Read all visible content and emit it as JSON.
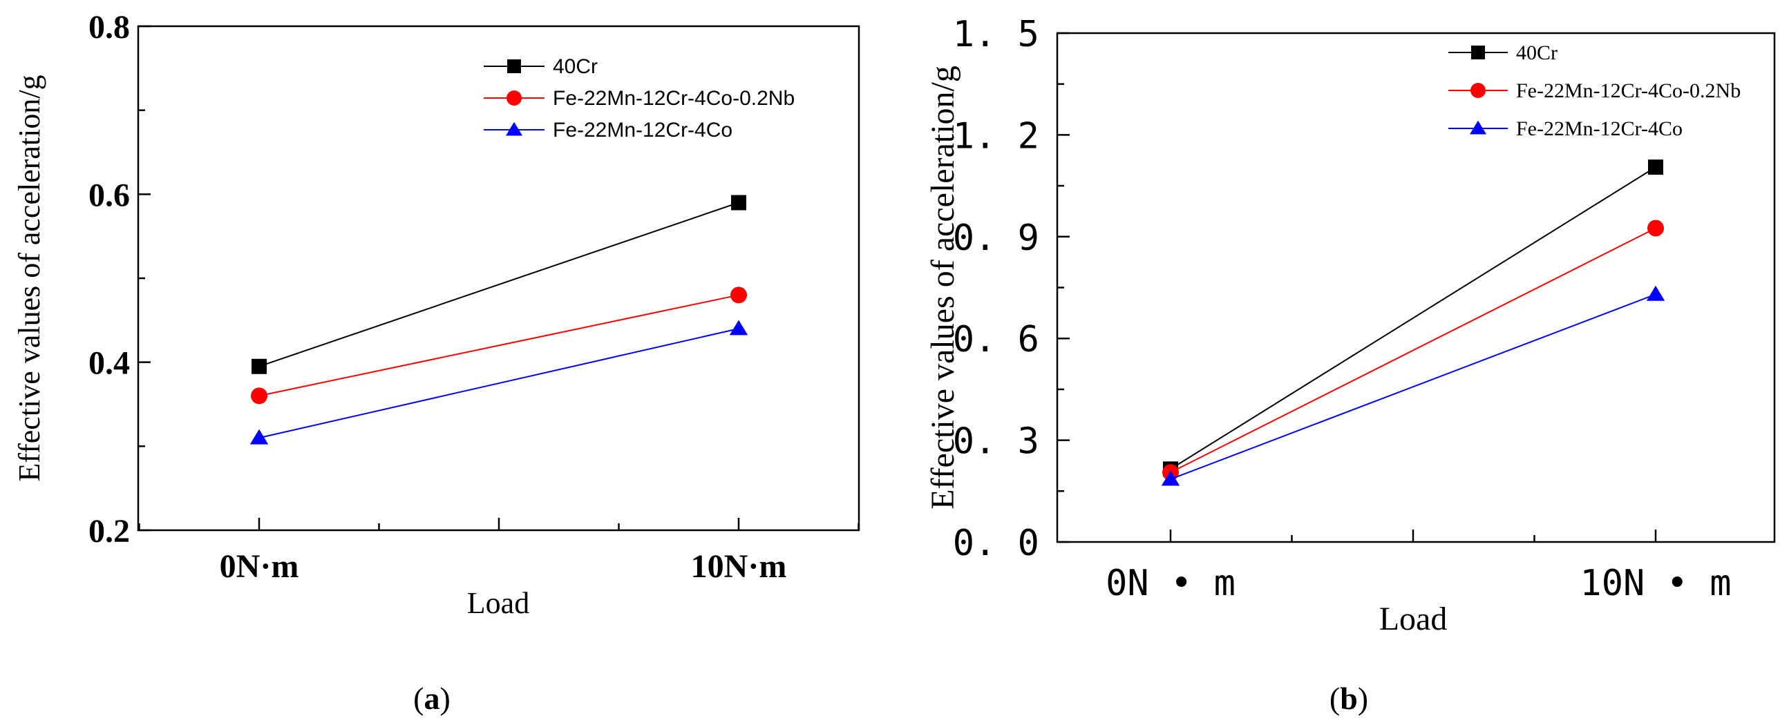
{
  "chart_data": [
    {
      "type": "line",
      "panel_label": "a",
      "categories": [
        "0N·m",
        "10N·m"
      ],
      "xlabel": "Load",
      "ylabel": "Effective values of acceleration/g",
      "ylim": [
        0.2,
        0.8
      ],
      "yticks": [
        0.2,
        0.4,
        0.6,
        0.8
      ],
      "ytick_labels": [
        "0.2",
        "0.4",
        "0.6",
        "0.8"
      ],
      "legend_position": "top-right",
      "series": [
        {
          "name": "40Cr",
          "color": "#000000",
          "marker": "square",
          "values": [
            0.395,
            0.59
          ]
        },
        {
          "name": "Fe-22Mn-12Cr-4Co-0.2Nb",
          "color": "#ff0000",
          "marker": "circle",
          "values": [
            0.36,
            0.48
          ]
        },
        {
          "name": "Fe-22Mn-12Cr-4Co",
          "color": "#0000ff",
          "marker": "triangle",
          "values": [
            0.31,
            0.44
          ]
        }
      ]
    },
    {
      "type": "line",
      "panel_label": "b",
      "categories": [
        "0N • m",
        "10N • m"
      ],
      "xlabel": "Load",
      "ylabel": "Effective values of acceleration/g",
      "ylim": [
        0.0,
        1.5
      ],
      "yticks": [
        0.0,
        0.3,
        0.6,
        0.9,
        1.2,
        1.5
      ],
      "ytick_labels": [
        "0. 0",
        "0. 3",
        "0. 6",
        "0. 9",
        "1. 2",
        "1. 5"
      ],
      "legend_position": "top-right",
      "series": [
        {
          "name": "40Cr",
          "color": "#000000",
          "marker": "square",
          "values": [
            0.215,
            1.105
          ]
        },
        {
          "name": "Fe-22Mn-12Cr-4Co-0.2Nb",
          "color": "#ff0000",
          "marker": "circle",
          "values": [
            0.205,
            0.925
          ]
        },
        {
          "name": "Fe-22Mn-12Cr-4Co",
          "color": "#0000ff",
          "marker": "triangle",
          "values": [
            0.185,
            0.73
          ]
        }
      ]
    }
  ],
  "captions": [
    {
      "open": "(",
      "letter": "a",
      "close": ")"
    },
    {
      "open": "(",
      "letter": "b",
      "close": ")"
    }
  ]
}
